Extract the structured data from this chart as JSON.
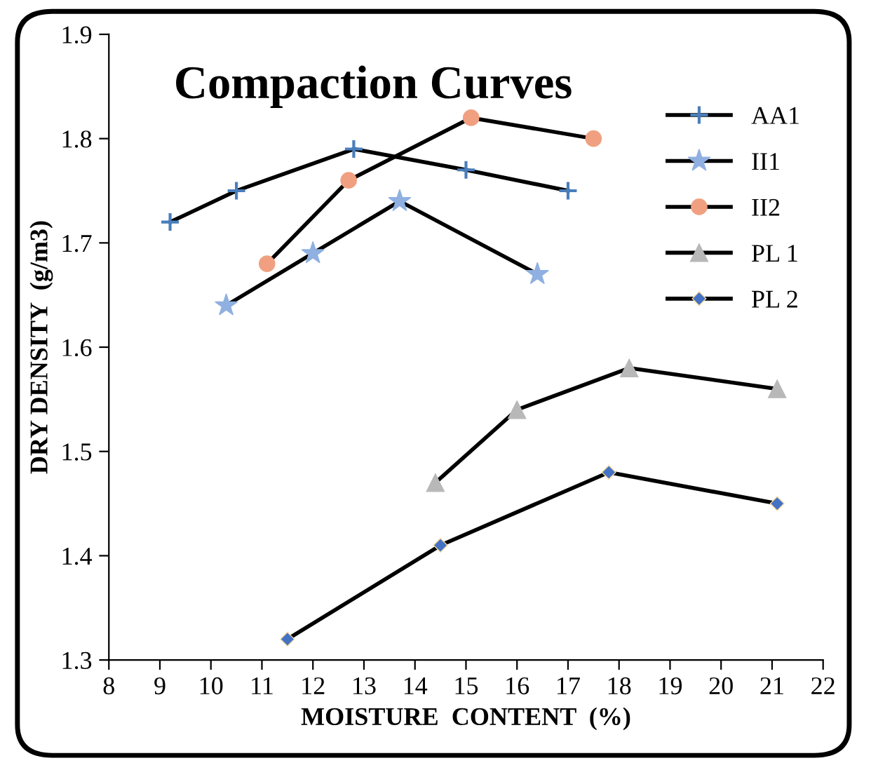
{
  "chart_data": {
    "type": "line",
    "title": "Compaction Curves",
    "xlabel": "MOISTURE  CONTENT  (%)",
    "ylabel": "DRY DENSITY  (g/m3)",
    "xlim": [
      8,
      22
    ],
    "xticks": [
      8,
      9,
      10,
      11,
      12,
      13,
      14,
      15,
      16,
      17,
      18,
      19,
      20,
      21,
      22
    ],
    "ylim": [
      1.3,
      1.9
    ],
    "yticks": [
      1.3,
      1.4,
      1.5,
      1.6,
      1.7,
      1.8,
      1.9
    ],
    "grid": false,
    "legend": "right",
    "line_style": "solid",
    "series": [
      {
        "name": "AA1",
        "color": "#4a7ebb",
        "marker": "cross",
        "x": [
          9.2,
          10.5,
          12.8,
          15.0,
          17.0
        ],
        "values": [
          1.72,
          1.75,
          1.79,
          1.77,
          1.75
        ]
      },
      {
        "name": "II1",
        "color": "#8fb0e0",
        "marker": "star",
        "x": [
          10.3,
          12.0,
          13.7,
          16.4
        ],
        "values": [
          1.64,
          1.69,
          1.74,
          1.67
        ]
      },
      {
        "name": "II2",
        "color": "#f0a080",
        "marker": "circle",
        "x": [
          11.1,
          12.7,
          15.1,
          17.5
        ],
        "values": [
          1.68,
          1.76,
          1.82,
          1.8
        ]
      },
      {
        "name": "PL 1",
        "color": "#b8b8b8",
        "marker": "triangle",
        "x": [
          14.4,
          16.0,
          18.2,
          21.1
        ],
        "values": [
          1.47,
          1.54,
          1.58,
          1.56
        ]
      },
      {
        "name": "PL 2",
        "color": "#4472c4",
        "marker": "diamond",
        "x": [
          11.5,
          14.5,
          17.8,
          21.1
        ],
        "values": [
          1.32,
          1.41,
          1.48,
          1.45
        ]
      }
    ]
  }
}
